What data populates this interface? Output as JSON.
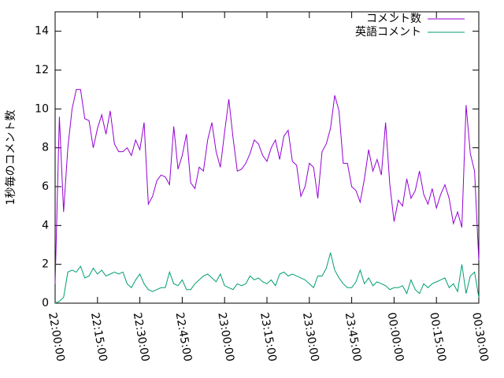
{
  "chart_data": {
    "type": "line",
    "ylabel": "1秒毎のコメント数",
    "x": [
      0,
      1.5,
      3,
      4.5,
      6,
      7.5,
      9,
      10.5,
      12,
      13.5,
      15,
      16.5,
      18,
      19.5,
      21,
      22.5,
      24,
      25.5,
      27,
      28.5,
      30,
      31.5,
      33,
      34.5,
      36,
      37.5,
      39,
      40.5,
      42,
      43.5,
      45,
      46.5,
      48,
      49.5,
      51,
      52.5,
      54,
      55.5,
      57,
      58.5,
      60,
      61.5,
      63,
      64.5,
      66,
      67.5,
      69,
      70.5,
      72,
      73.5,
      75,
      76.5,
      78,
      79.5,
      81,
      82.5,
      84,
      85.5,
      87,
      88.5,
      90,
      91.5,
      93,
      94.5,
      96,
      97.5,
      99,
      100.5,
      102,
      103.5,
      105,
      106.5,
      108,
      109.5,
      111,
      112.5,
      114,
      115.5,
      117,
      118.5,
      120,
      121.5,
      123,
      124.5,
      126,
      127.5,
      129,
      130.5,
      132,
      133.5,
      135,
      136.5,
      138,
      139.5,
      141,
      142.5,
      144,
      145.5,
      147,
      148.5,
      150
    ],
    "series": [
      {
        "name": "コメント数",
        "color": "#9400d3",
        "values": [
          1.0,
          9.6,
          4.7,
          8.0,
          10.0,
          11.0,
          11.0,
          9.5,
          9.4,
          8.0,
          9.0,
          9.7,
          8.7,
          9.9,
          8.2,
          7.8,
          7.8,
          8.0,
          7.6,
          8.4,
          7.9,
          9.3,
          5.1,
          5.5,
          6.3,
          6.6,
          6.5,
          6.1,
          9.1,
          6.9,
          7.6,
          8.7,
          6.2,
          5.9,
          7.0,
          6.8,
          8.4,
          9.3,
          7.8,
          7.0,
          8.8,
          10.5,
          8.5,
          6.8,
          6.9,
          7.2,
          7.7,
          8.4,
          8.2,
          7.6,
          7.3,
          8.0,
          8.4,
          7.4,
          8.6,
          8.9,
          7.3,
          7.1,
          5.5,
          6.0,
          7.2,
          7.0,
          5.4,
          7.8,
          8.2,
          9.0,
          10.7,
          9.9,
          7.2,
          7.2,
          6.0,
          5.8,
          5.2,
          6.4,
          7.9,
          6.8,
          7.4,
          6.6,
          9.3,
          6.1,
          4.2,
          5.3,
          5.0,
          6.4,
          5.4,
          5.8,
          6.8,
          5.6,
          5.1,
          5.9,
          4.9,
          5.6,
          6.1,
          5.4,
          4.1,
          4.7,
          3.9,
          10.2,
          7.7,
          6.8,
          2.2
        ]
      },
      {
        "name": "英語コメント",
        "color": "#009e73",
        "values": [
          0,
          0.1,
          0.3,
          1.6,
          1.7,
          1.6,
          1.9,
          1.3,
          1.4,
          1.8,
          1.5,
          1.7,
          1.4,
          1.5,
          1.6,
          1.5,
          1.6,
          1.0,
          0.8,
          1.2,
          1.5,
          1.0,
          0.7,
          0.6,
          0.7,
          0.8,
          0.8,
          1.6,
          1.0,
          0.9,
          1.2,
          0.7,
          0.7,
          1.0,
          1.2,
          1.4,
          1.5,
          1.3,
          1.1,
          1.5,
          0.9,
          0.8,
          0.7,
          1.0,
          0.9,
          1.0,
          1.4,
          1.2,
          1.3,
          1.1,
          1.0,
          1.2,
          0.9,
          1.5,
          1.6,
          1.4,
          1.5,
          1.4,
          1.3,
          1.2,
          1.0,
          0.8,
          1.4,
          1.4,
          1.8,
          2.6,
          1.7,
          1.3,
          1.0,
          0.8,
          0.8,
          1.1,
          1.7,
          1.0,
          1.3,
          0.9,
          1.1,
          1.0,
          0.9,
          0.7,
          0.8,
          0.8,
          0.9,
          0.5,
          1.2,
          0.7,
          0.5,
          1.0,
          0.8,
          1.0,
          1.1,
          1.2,
          1.3,
          0.8,
          1.0,
          0.6,
          2.0,
          0.5,
          1.4,
          1.6,
          0.3
        ]
      }
    ],
    "xlim": [
      0,
      150
    ],
    "xticks": [
      {
        "value": 0,
        "label": "22:00:00"
      },
      {
        "value": 15,
        "label": "22:15:00"
      },
      {
        "value": 30,
        "label": "22:30:00"
      },
      {
        "value": 45,
        "label": "22:45:00"
      },
      {
        "value": 60,
        "label": "23:00:00"
      },
      {
        "value": 75,
        "label": "23:15:00"
      },
      {
        "value": 90,
        "label": "23:30:00"
      },
      {
        "value": 105,
        "label": "23:45:00"
      },
      {
        "value": 120,
        "label": "00:00:00"
      },
      {
        "value": 135,
        "label": "00:15:00"
      },
      {
        "value": 150,
        "label": "00:30:00"
      }
    ],
    "ylim": [
      0,
      15
    ],
    "yticks": [
      0,
      2,
      4,
      6,
      8,
      10,
      12,
      14
    ],
    "grid": false,
    "legend": "top-right"
  }
}
